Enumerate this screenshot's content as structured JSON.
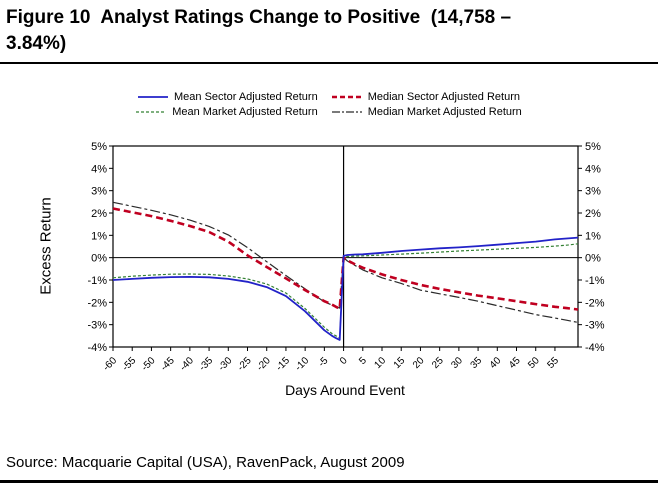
{
  "header": {
    "title_line1": "Figure 10  Analyst Ratings Change to Positive  (14,758 –",
    "title_line2": "3.84%)"
  },
  "source": {
    "text": "Source: Macquarie Capital (USA), RavenPack, August 2009"
  },
  "chart_data": {
    "type": "line",
    "title": "Analyst Ratings Change to Positive (14,758 – 3.84%)",
    "xlabel": "Days Around Event",
    "ylabel": "Excess Return",
    "xlim": [
      -60,
      61
    ],
    "ylim": [
      -4,
      5
    ],
    "x_ticks": [
      -60,
      -55,
      -50,
      -45,
      -40,
      -35,
      -30,
      -25,
      -20,
      -15,
      -10,
      -5,
      0,
      5,
      10,
      15,
      20,
      25,
      30,
      35,
      40,
      45,
      50,
      55
    ],
    "y_ticks": [
      5,
      4,
      3,
      2,
      1,
      0,
      -1,
      -2,
      -3,
      -4
    ],
    "y_tick_suffix": "%",
    "grid": "zero-line-only",
    "event_line_x": 0,
    "legend_position": "top",
    "axis_color": "#000000",
    "x": [
      -60,
      -55,
      -50,
      -45,
      -40,
      -35,
      -30,
      -25,
      -20,
      -15,
      -10,
      -5,
      -3,
      -2,
      -1,
      0,
      1,
      3,
      5,
      10,
      15,
      20,
      25,
      30,
      35,
      40,
      45,
      50,
      55,
      58,
      61
    ],
    "series": [
      {
        "name": "Mean Sector Adjusted Return",
        "color": "#2222C8",
        "style": "solid",
        "dash": "",
        "width": 1.8,
        "legend_dash": "",
        "values": [
          -1.0,
          -0.95,
          -0.9,
          -0.87,
          -0.86,
          -0.88,
          -0.95,
          -1.08,
          -1.32,
          -1.72,
          -2.4,
          -3.25,
          -3.5,
          -3.6,
          -3.68,
          0.08,
          0.12,
          0.14,
          0.15,
          0.22,
          0.3,
          0.36,
          0.42,
          0.46,
          0.52,
          0.58,
          0.65,
          0.72,
          0.82,
          0.86,
          0.9
        ]
      },
      {
        "name": "Median Sector Adjusted Return",
        "color": "#C00020",
        "style": "dashed",
        "dash": "7,4",
        "width": 2.6,
        "legend_dash": "5,3",
        "values": [
          2.2,
          2.03,
          1.86,
          1.65,
          1.42,
          1.15,
          0.72,
          0.1,
          -0.42,
          -0.93,
          -1.45,
          -1.95,
          -2.1,
          -2.2,
          -2.28,
          0.0,
          -0.12,
          -0.3,
          -0.45,
          -0.75,
          -1.0,
          -1.22,
          -1.4,
          -1.55,
          -1.7,
          -1.82,
          -1.95,
          -2.08,
          -2.2,
          -2.26,
          -2.32
        ]
      },
      {
        "name": "Mean Market Adjusted Return",
        "color": "#338033",
        "style": "dotted",
        "dash": "3,2",
        "width": 1.2,
        "legend_dash": "3,2",
        "values": [
          -0.9,
          -0.83,
          -0.78,
          -0.74,
          -0.73,
          -0.75,
          -0.82,
          -0.95,
          -1.18,
          -1.58,
          -2.28,
          -3.12,
          -3.4,
          -3.5,
          -3.6,
          0.02,
          0.05,
          0.07,
          0.08,
          0.12,
          0.16,
          0.2,
          0.25,
          0.3,
          0.34,
          0.38,
          0.42,
          0.46,
          0.52,
          0.56,
          0.62
        ]
      },
      {
        "name": "Median Market Adjusted Return",
        "color": "#2A2A2A",
        "style": "dashdot",
        "dash": "10,3,3,3",
        "width": 1.2,
        "legend_dash": "8,2,2,2",
        "values": [
          2.48,
          2.3,
          2.12,
          1.92,
          1.68,
          1.4,
          1.02,
          0.45,
          -0.18,
          -0.8,
          -1.4,
          -1.98,
          -2.12,
          -2.2,
          -2.26,
          0.0,
          -0.15,
          -0.35,
          -0.55,
          -0.9,
          -1.15,
          -1.45,
          -1.62,
          -1.78,
          -1.95,
          -2.15,
          -2.35,
          -2.55,
          -2.7,
          -2.8,
          -2.9
        ]
      }
    ]
  }
}
